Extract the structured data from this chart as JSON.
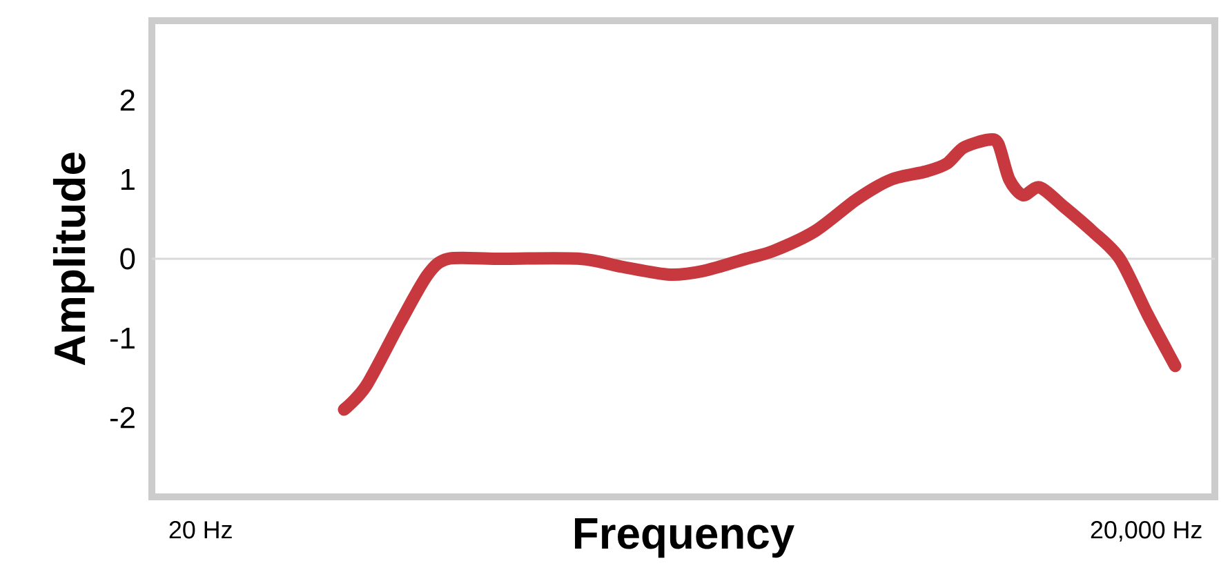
{
  "chart_data": {
    "type": "line",
    "xlabel": "Frequency",
    "ylabel": "Amplitude",
    "log": "x",
    "xlim": [
      14,
      33000
    ],
    "ylim": [
      -3,
      3
    ],
    "xticks": [
      {
        "value": 20,
        "label": "20 Hz"
      },
      {
        "value": 20000,
        "label": "20,000 Hz"
      }
    ],
    "yticks": [
      -2,
      -1,
      0,
      1,
      2
    ],
    "ref_lines": [
      {
        "axis": "y",
        "value": 0,
        "color": "#d9d9d9"
      }
    ],
    "series": [
      {
        "color": "#c8393f",
        "x": [
          57,
          67,
          86,
          105,
          122,
          174,
          319,
          433,
          617,
          794,
          1075,
          1315,
          1782,
          2414,
          3110,
          4000,
          4660,
          5260,
          6310,
          6780,
          7350,
          8130,
          9170,
          11000,
          13460,
          16480,
          20180,
          24700
        ],
        "values": [
          -1.9,
          -1.6,
          -0.8,
          -0.2,
          0.0,
          0.0,
          0.0,
          -0.1,
          -0.2,
          -0.15,
          0.0,
          0.1,
          0.35,
          0.75,
          1.0,
          1.1,
          1.2,
          1.4,
          1.5,
          1.45,
          1.0,
          0.8,
          0.9,
          0.65,
          0.35,
          0.0,
          -0.7,
          -1.35
        ]
      }
    ]
  }
}
